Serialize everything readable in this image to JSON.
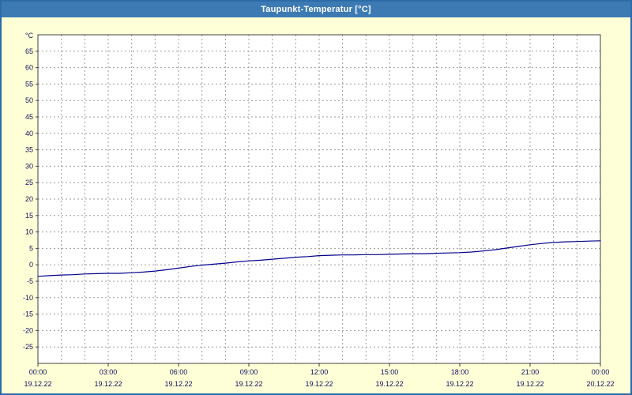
{
  "window": {
    "title": "Taupunkt-Temperatur [°C]"
  },
  "chart_data": {
    "type": "line",
    "title": "Taupunkt-Temperatur [°C]",
    "ylabel": "°C",
    "xlabel": "",
    "ylim": [
      -30,
      70
    ],
    "xlim_hours": [
      0,
      24
    ],
    "grid": "dashed",
    "legend": "none",
    "y_ticks": [
      65,
      60,
      55,
      50,
      45,
      40,
      35,
      30,
      25,
      20,
      15,
      10,
      5,
      0,
      -5,
      -10,
      -15,
      -20,
      -25
    ],
    "x_ticks": [
      {
        "hour": 0,
        "time": "00:00",
        "date": "19.12.22"
      },
      {
        "hour": 3,
        "time": "03:00",
        "date": "19.12.22"
      },
      {
        "hour": 6,
        "time": "06:00",
        "date": "19.12.22"
      },
      {
        "hour": 9,
        "time": "09:00",
        "date": "19.12.22"
      },
      {
        "hour": 12,
        "time": "12:00",
        "date": "19.12.22"
      },
      {
        "hour": 15,
        "time": "15:00",
        "date": "19.12.22"
      },
      {
        "hour": 18,
        "time": "18:00",
        "date": "19.12.22"
      },
      {
        "hour": 21,
        "time": "21:00",
        "date": "19.12.22"
      },
      {
        "hour": 24,
        "time": "00:00",
        "date": "20.12.22"
      }
    ],
    "series": [
      {
        "name": "Taupunkt-Temperatur",
        "color": "#00008b",
        "x_hours": [
          0,
          0.5,
          1,
          1.5,
          2,
          2.5,
          3,
          3.5,
          4,
          4.5,
          5,
          5.5,
          6,
          6.5,
          7,
          7.5,
          8,
          8.5,
          9,
          9.5,
          10,
          10.5,
          11,
          11.5,
          12,
          12.5,
          13,
          13.5,
          14,
          14.5,
          15,
          15.5,
          16,
          16.5,
          17,
          17.5,
          18,
          18.5,
          19,
          19.5,
          20,
          20.5,
          21,
          21.5,
          22,
          22.5,
          23,
          23.5,
          24
        ],
        "values": [
          -3.5,
          -3.3,
          -3.1,
          -3.0,
          -2.8,
          -2.7,
          -2.6,
          -2.6,
          -2.4,
          -2.2,
          -1.9,
          -1.5,
          -1.0,
          -0.5,
          -0.1,
          0.2,
          0.5,
          0.9,
          1.2,
          1.4,
          1.7,
          2.0,
          2.3,
          2.5,
          2.8,
          2.9,
          3.0,
          3.0,
          3.1,
          3.1,
          3.2,
          3.3,
          3.4,
          3.4,
          3.5,
          3.6,
          3.7,
          3.9,
          4.2,
          4.6,
          5.1,
          5.6,
          6.1,
          6.5,
          6.8,
          7.0,
          7.1,
          7.2,
          7.3
        ]
      }
    ],
    "colors": {
      "page_bg": "#ffffd7",
      "titlebar_bg": "#3d7ab4",
      "titlebar_text": "#ffffff",
      "border": "#2b6ba8",
      "plot_bg": "#ffffff",
      "grid": "#9a9a9a",
      "axis": "#404040",
      "label": "#101060",
      "line": "#00008b"
    }
  }
}
